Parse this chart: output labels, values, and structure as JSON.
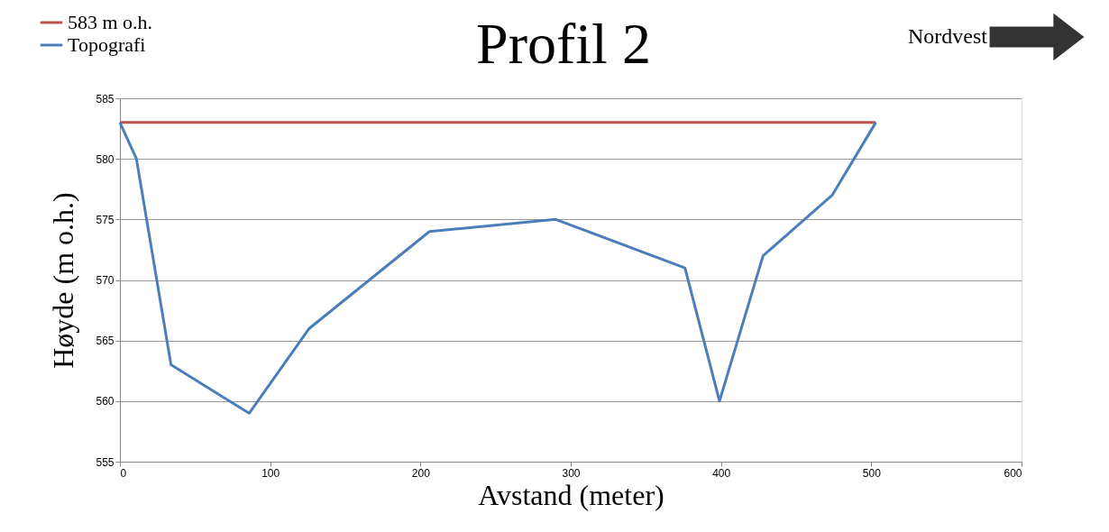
{
  "chart_data": {
    "type": "line",
    "title": "Profil 2",
    "xlabel": "Avstand (meter)",
    "ylabel": "Høyde (m o.h.)",
    "annotations": [
      "Nordvest"
    ],
    "series": [
      {
        "name": "583 m o.h.",
        "color": "#c0504d",
        "x": [
          0,
          503
        ],
        "values": [
          583,
          583
        ]
      },
      {
        "name": "Topografi",
        "color": "#4a7ebb",
        "x": [
          0,
          11,
          34,
          86,
          126,
          206,
          290,
          376,
          399,
          428,
          474,
          503
        ],
        "values": [
          583,
          580,
          563,
          559,
          566,
          574,
          575,
          571,
          560,
          572,
          577,
          583
        ]
      }
    ],
    "xlim": [
      0,
      600
    ],
    "xticks": [
      0,
      100,
      200,
      300,
      400,
      500,
      600
    ],
    "ylim": [
      555,
      585
    ],
    "yticks": [
      555,
      560,
      565,
      570,
      575,
      580,
      585
    ],
    "grid": "y",
    "legend": "top left",
    "marker": "none",
    "line_style": "solid"
  }
}
